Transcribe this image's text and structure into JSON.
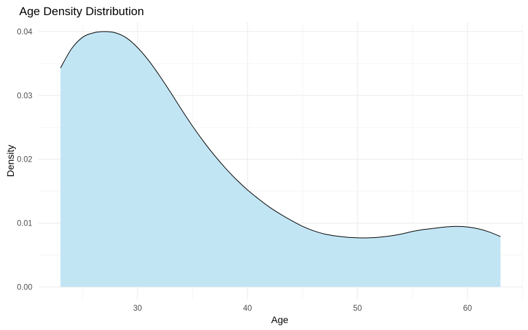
{
  "chart_data": {
    "type": "area",
    "title": "Age Density Distribution",
    "xlabel": "Age",
    "ylabel": "Density",
    "xlim": [
      21,
      65
    ],
    "ylim": [
      -0.002,
      0.0415
    ],
    "x_ticks": [
      30,
      40,
      50,
      60
    ],
    "x_minor_ticks": [
      25,
      35,
      45,
      55,
      65
    ],
    "y_ticks": [
      0.0,
      0.01,
      0.02,
      0.03,
      0.04
    ],
    "y_tick_labels": [
      "0.00",
      "0.01",
      "0.02",
      "0.03",
      "0.04"
    ],
    "y_minor_ticks": [
      0.005,
      0.015,
      0.025,
      0.035
    ],
    "grid": true,
    "fill_color": "#c2e5f4",
    "line_color": "#000000",
    "series": [
      {
        "x": [
          23,
          24,
          25,
          26,
          27,
          28,
          29,
          30,
          31,
          32,
          33,
          34,
          35,
          36,
          37,
          38,
          39,
          40,
          41,
          42,
          43,
          44,
          45,
          46,
          47,
          48,
          49,
          50,
          51,
          52,
          53,
          54,
          55,
          56,
          57,
          58,
          59,
          60,
          61,
          62,
          63
        ],
        "y": [
          0.0343,
          0.0373,
          0.0391,
          0.0398,
          0.04,
          0.0398,
          0.039,
          0.0375,
          0.0355,
          0.0331,
          0.0305,
          0.0278,
          0.0252,
          0.0228,
          0.0206,
          0.0186,
          0.0168,
          0.0152,
          0.0138,
          0.0125,
          0.0114,
          0.0104,
          0.0095,
          0.0088,
          0.0083,
          0.008,
          0.0078,
          0.0077,
          0.0077,
          0.0078,
          0.008,
          0.0083,
          0.0087,
          0.009,
          0.0092,
          0.0094,
          0.0095,
          0.0094,
          0.0091,
          0.0086,
          0.0079
        ]
      }
    ]
  }
}
